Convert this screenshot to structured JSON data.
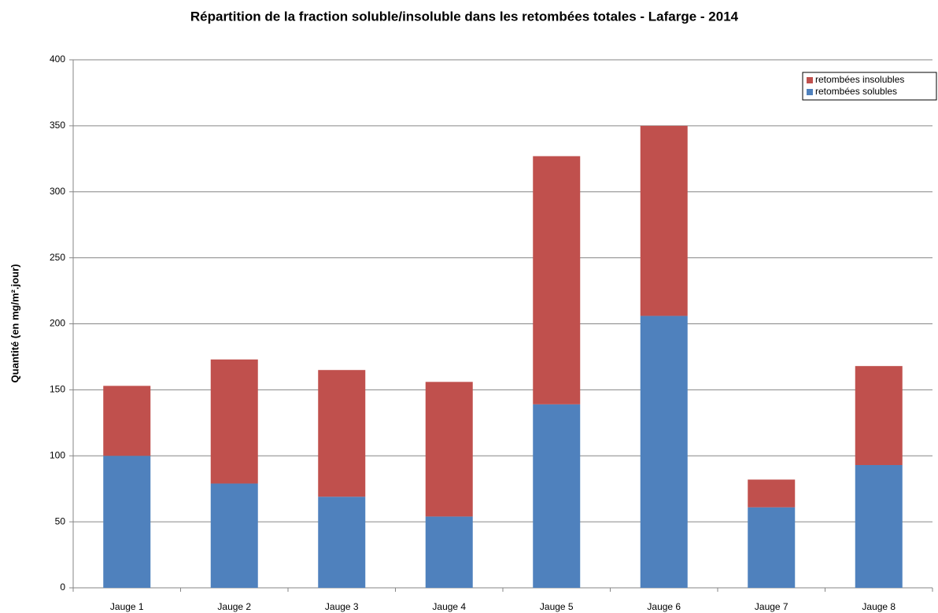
{
  "chart_data": {
    "type": "stacked-bar",
    "title": "Répartition de la fraction soluble/insoluble dans les retombées totales - Lafarge - 2014",
    "y_label": "Quantité (en mg/m².jour)",
    "categories": [
      "Jauge 1",
      "Jauge 2",
      "Jauge 3",
      "Jauge 4",
      "Jauge 5",
      "Jauge 6",
      "Jauge 7",
      "Jauge 8"
    ],
    "series": [
      {
        "name": "retombées solubles",
        "color": "#4f81bd",
        "values": [
          100,
          79,
          69,
          54,
          139,
          206,
          61,
          93
        ]
      },
      {
        "name": "retombées insolubles",
        "color": "#c0504d",
        "values": [
          53,
          94,
          96,
          102,
          188,
          144,
          21,
          75
        ]
      }
    ],
    "ylim": [
      0,
      400
    ],
    "yticks": [
      0,
      50,
      100,
      150,
      200,
      250,
      300,
      350,
      400
    ],
    "grid": true,
    "legend": "top-right"
  }
}
